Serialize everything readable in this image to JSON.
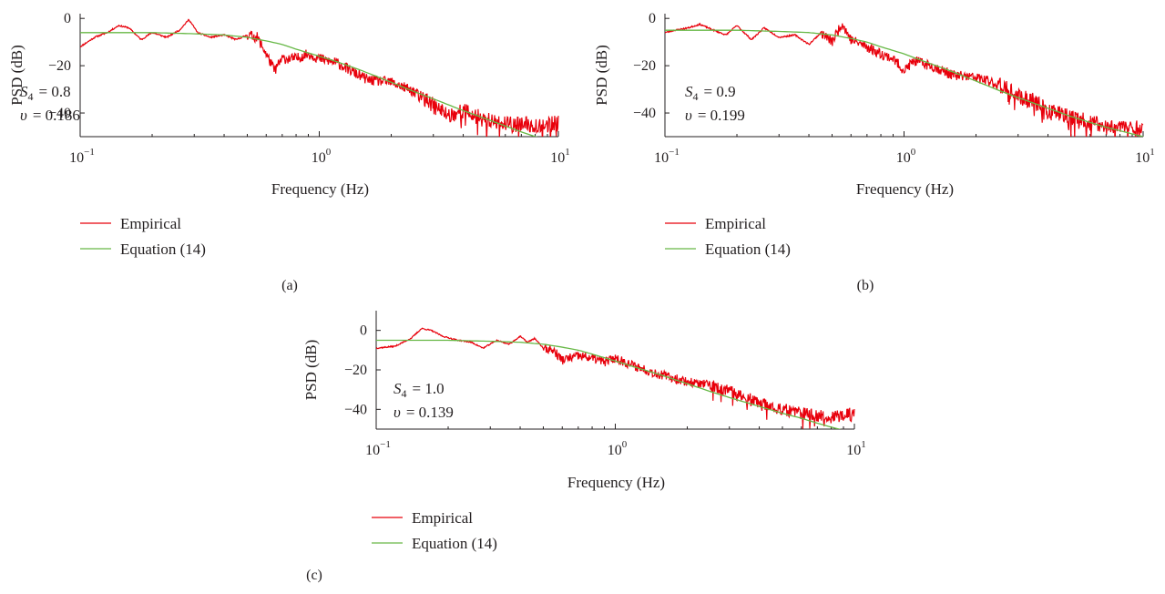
{
  "chart_data": [
    {
      "type": "line",
      "panel_label": "(a)",
      "xlabel": "Frequency (Hz)",
      "ylabel": "PSD (dB)",
      "x_scale": "log",
      "xlim": [
        0.1,
        10
      ],
      "ylim": [
        -50,
        2
      ],
      "x_ticks": [
        {
          "base": "10",
          "exp": "−1"
        },
        {
          "base": "10",
          "exp": "0"
        },
        {
          "base": "10",
          "exp": "1"
        }
      ],
      "y_ticks": [
        "0",
        "−20",
        "−40"
      ],
      "y_tick_values": [
        0,
        -20,
        -40
      ],
      "grid": false,
      "legend_position": "below",
      "annotation": {
        "s4_symbol": "S",
        "s4_sub": "4",
        "s4_value": "= 0.8",
        "v_symbol": "υ",
        "v_value": "= 0.186"
      },
      "series": [
        {
          "name": "Empirical",
          "color": "#e8000b",
          "seed": 11,
          "x": [
            0.1,
            0.115,
            0.13,
            0.145,
            0.16,
            0.18,
            0.2,
            0.23,
            0.26,
            0.285,
            0.31,
            0.35,
            0.4,
            0.45,
            0.5,
            0.55,
            0.6,
            0.65,
            0.7,
            0.8,
            0.9,
            1.0,
            1.2,
            1.4,
            1.6,
            2.0,
            2.5,
            3.0,
            3.5,
            4.0,
            5.0,
            6.0,
            7.0,
            8.0,
            9.0,
            10.0
          ],
          "y": [
            -12,
            -8,
            -6,
            -3,
            -4,
            -9,
            -6,
            -8,
            -5,
            -0.5,
            -6,
            -8,
            -7,
            -9,
            -7,
            -8,
            -15,
            -22,
            -17,
            -17,
            -15,
            -17,
            -19,
            -23,
            -26,
            -27,
            -31,
            -37,
            -41,
            -39,
            -43,
            -45,
            -45,
            -45,
            -45,
            -44
          ],
          "noise": 2.2,
          "noise_start": 0.5,
          "dense_noise_start": 2.5,
          "dense_noise": 3.5
        },
        {
          "name": "Equation (14)",
          "color": "#67b846",
          "x": [
            0.1,
            0.2,
            0.3,
            0.4,
            0.5,
            0.6,
            0.7,
            0.8,
            1.0,
            1.2,
            1.5,
            2.0,
            2.5,
            3.0,
            4.0,
            5.0,
            6.0,
            7.0,
            8.0,
            10.0
          ],
          "y": [
            -6,
            -6,
            -6.5,
            -7,
            -8,
            -9.5,
            -11,
            -13,
            -16,
            -18.5,
            -22,
            -27,
            -31,
            -34,
            -39,
            -42.5,
            -45.5,
            -48,
            -50,
            -52
          ]
        }
      ]
    },
    {
      "type": "line",
      "panel_label": "(b)",
      "xlabel": "Frequency (Hz)",
      "ylabel": "PSD (dB)",
      "x_scale": "log",
      "xlim": [
        0.1,
        10
      ],
      "ylim": [
        -50,
        2
      ],
      "x_ticks": [
        {
          "base": "10",
          "exp": "−1"
        },
        {
          "base": "10",
          "exp": "0"
        },
        {
          "base": "10",
          "exp": "1"
        }
      ],
      "y_ticks": [
        "0",
        "−20",
        "−40"
      ],
      "y_tick_values": [
        0,
        -20,
        -40
      ],
      "grid": false,
      "legend_position": "below",
      "annotation": {
        "s4_symbol": "S",
        "s4_sub": "4",
        "s4_value": "= 0.9",
        "v_symbol": "υ",
        "v_value": "= 0.199"
      },
      "series": [
        {
          "name": "Empirical",
          "color": "#e8000b",
          "seed": 23,
          "x": [
            0.1,
            0.11,
            0.125,
            0.14,
            0.16,
            0.18,
            0.2,
            0.23,
            0.26,
            0.3,
            0.35,
            0.4,
            0.45,
            0.5,
            0.55,
            0.6,
            0.7,
            0.8,
            0.9,
            1.0,
            1.1,
            1.3,
            1.6,
            2.0,
            2.5,
            3.0,
            3.5,
            4.0,
            5.0,
            6.0,
            7.0,
            8.0,
            9.0,
            10.0
          ],
          "y": [
            -6,
            -5,
            -4,
            -2.5,
            -5,
            -7,
            -3,
            -9,
            -4,
            -8,
            -7,
            -11,
            -6,
            -10,
            -2,
            -9,
            -12,
            -15,
            -17,
            -22,
            -18,
            -20,
            -24,
            -25,
            -28,
            -33,
            -35,
            -39,
            -42,
            -44,
            -46,
            -45,
            -46,
            -47
          ],
          "noise": 2.2,
          "noise_start": 0.45,
          "dense_noise_start": 2.5,
          "dense_noise": 3.5
        },
        {
          "name": "Equation (14)",
          "color": "#67b846",
          "x": [
            0.1,
            0.2,
            0.3,
            0.4,
            0.5,
            0.6,
            0.7,
            0.8,
            1.0,
            1.2,
            1.5,
            2.0,
            2.5,
            3.0,
            4.0,
            5.0,
            6.0,
            7.0,
            8.0,
            10.0
          ],
          "y": [
            -5,
            -5,
            -5.5,
            -6,
            -7,
            -8.5,
            -10,
            -12,
            -15,
            -18,
            -21.5,
            -26.5,
            -30.5,
            -33.5,
            -38,
            -41.5,
            -44,
            -46,
            -47.5,
            -50
          ]
        }
      ]
    },
    {
      "type": "line",
      "panel_label": "(c)",
      "xlabel": "Frequency (Hz)",
      "ylabel": "PSD (dB)",
      "x_scale": "log",
      "xlim": [
        0.1,
        10
      ],
      "ylim": [
        -50,
        10
      ],
      "x_ticks": [
        {
          "base": "10",
          "exp": "−1"
        },
        {
          "base": "10",
          "exp": "0"
        },
        {
          "base": "10",
          "exp": "1"
        }
      ],
      "y_ticks": [
        "0",
        "−20",
        "−40"
      ],
      "y_tick_values": [
        0,
        -20,
        -40
      ],
      "grid": false,
      "legend_position": "below",
      "annotation": {
        "s4_symbol": "S",
        "s4_sub": "4",
        "s4_value": "= 1.0",
        "v_symbol": "υ",
        "v_value": "= 0.139"
      },
      "series": [
        {
          "name": "Empirical",
          "color": "#e8000b",
          "seed": 37,
          "x": [
            0.1,
            0.12,
            0.14,
            0.155,
            0.17,
            0.19,
            0.22,
            0.25,
            0.28,
            0.32,
            0.36,
            0.4,
            0.43,
            0.46,
            0.5,
            0.55,
            0.6,
            0.7,
            0.8,
            0.9,
            1.0,
            1.2,
            1.5,
            2.0,
            2.5,
            3.0,
            3.5,
            4.0,
            5.0,
            6.0,
            7.0,
            8.0,
            9.0,
            10.0
          ],
          "y": [
            -9,
            -8,
            -4,
            1,
            0,
            -3,
            -5,
            -6,
            -9,
            -5,
            -7,
            -3,
            -6,
            -4,
            -9,
            -10,
            -15,
            -13,
            -14,
            -16,
            -14,
            -18,
            -22,
            -26,
            -28,
            -31,
            -34,
            -37,
            -40,
            -42,
            -43,
            -44,
            -43,
            -42
          ],
          "noise": 2.4,
          "noise_start": 0.5,
          "dense_noise_start": 2.5,
          "dense_noise": 3.2
        },
        {
          "name": "Equation (14)",
          "color": "#67b846",
          "x": [
            0.1,
            0.2,
            0.3,
            0.4,
            0.5,
            0.6,
            0.7,
            0.8,
            1.0,
            1.2,
            1.5,
            2.0,
            2.5,
            3.0,
            4.0,
            5.0,
            6.0,
            7.0,
            8.0,
            10.0
          ],
          "y": [
            -5,
            -5,
            -5.5,
            -6,
            -7,
            -8.5,
            -10,
            -12,
            -15.5,
            -18.5,
            -22,
            -27,
            -31,
            -34,
            -38.5,
            -42,
            -44.5,
            -47,
            -49,
            -52
          ]
        }
      ]
    }
  ]
}
